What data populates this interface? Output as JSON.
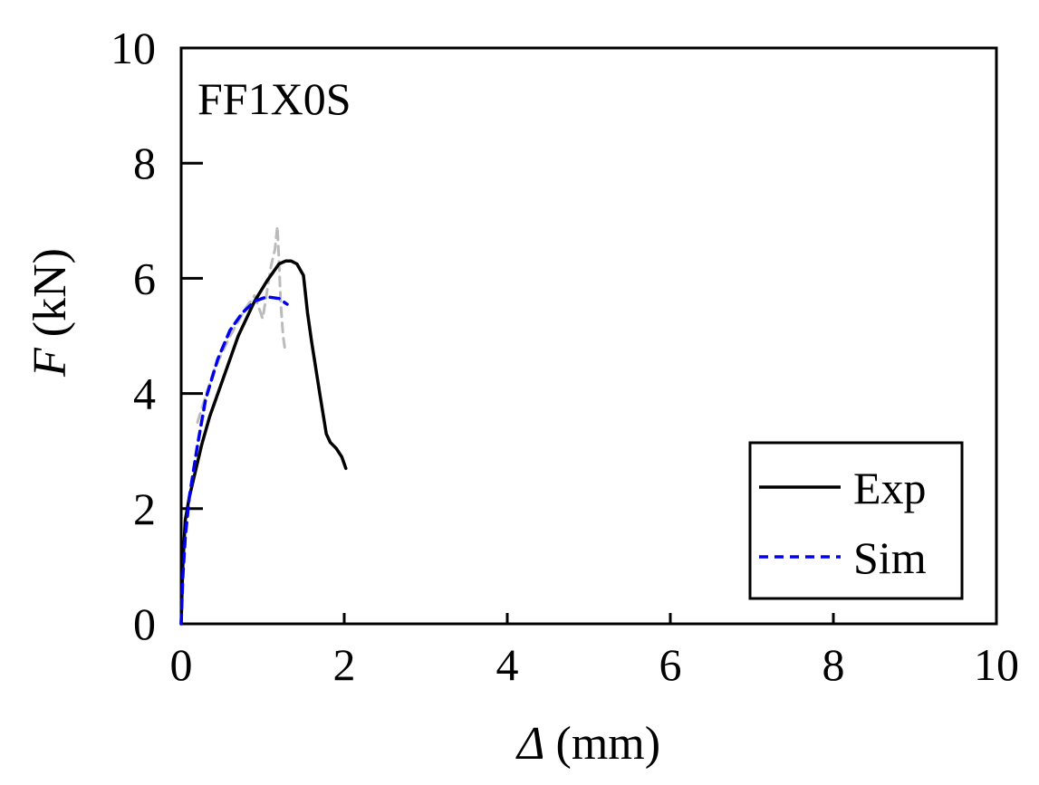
{
  "chart_data": {
    "type": "line",
    "title": "",
    "annotation": "FF1X0S",
    "xlabel": {
      "symbol": "Δ",
      "unit": "(mm)"
    },
    "ylabel": {
      "symbol": "F",
      "unit": "(kN)"
    },
    "xlim": [
      0,
      10
    ],
    "ylim": [
      0,
      10
    ],
    "xticks": [
      0,
      2,
      4,
      6,
      8,
      10
    ],
    "yticks": [
      0,
      2,
      4,
      6,
      8,
      10
    ],
    "xtick_labels": [
      "0",
      "2",
      "4",
      "6",
      "8",
      "10"
    ],
    "ytick_labels": [
      "0",
      "2",
      "4",
      "6",
      "8",
      "10"
    ],
    "grid": false,
    "legend_position": "bottom-right",
    "series": [
      {
        "name": "Exp",
        "style": "solid",
        "color": "#000000",
        "in_legend": true,
        "x": [
          0,
          0.02,
          0.05,
          0.1,
          0.15,
          0.25,
          0.35,
          0.5,
          0.7,
          0.9,
          1.05,
          1.2,
          1.28,
          1.35,
          1.42,
          1.5,
          1.55,
          1.6,
          1.7,
          1.78,
          1.83,
          1.9,
          1.97,
          2.02
        ],
        "y": [
          0,
          1.0,
          1.8,
          2.2,
          2.5,
          3.1,
          3.6,
          4.2,
          5.0,
          5.6,
          5.95,
          6.25,
          6.3,
          6.3,
          6.25,
          6.05,
          5.4,
          4.9,
          4.0,
          3.3,
          3.15,
          3.05,
          2.9,
          2.7
        ]
      },
      {
        "name": "Sim",
        "style": "dashed",
        "color": "#0000ee",
        "in_legend": true,
        "x": [
          0,
          0.02,
          0.05,
          0.1,
          0.2,
          0.3,
          0.45,
          0.6,
          0.75,
          0.9,
          1.05,
          1.2,
          1.3
        ],
        "y": [
          0,
          0.8,
          1.5,
          2.2,
          3.1,
          3.9,
          4.6,
          5.1,
          5.4,
          5.6,
          5.68,
          5.65,
          5.55
        ]
      },
      {
        "name": "Sim-fluctuation",
        "style": "dashed",
        "color": "#bbbbbb",
        "in_legend": false,
        "x": [
          0.2,
          0.4,
          0.6,
          0.8,
          0.9,
          1.0,
          1.05,
          1.1,
          1.15,
          1.18,
          1.2,
          1.22,
          1.25,
          1.28
        ],
        "y": [
          3.5,
          4.4,
          5.0,
          5.5,
          5.7,
          5.3,
          5.75,
          6.2,
          6.5,
          6.9,
          6.3,
          5.6,
          5.0,
          4.7
        ]
      }
    ]
  }
}
